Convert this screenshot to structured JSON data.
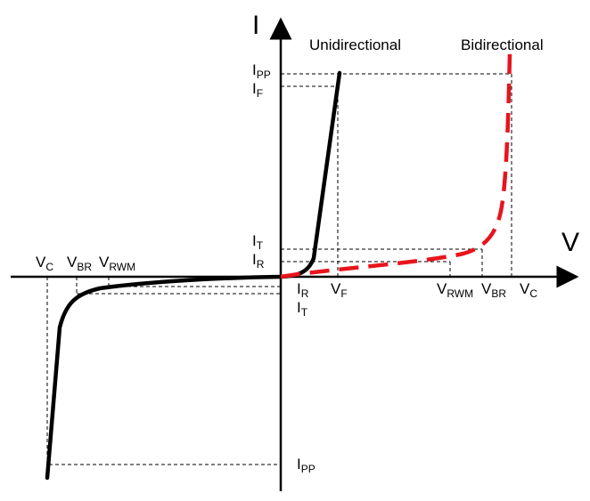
{
  "axes": {
    "y_axis_label": "I",
    "x_axis_label": "V"
  },
  "legend": {
    "unidirectional": "Unidirectional",
    "bidirectional": "Bidirectional"
  },
  "colors": {
    "unidirectional": "#000000",
    "bidirectional": "#e8141c",
    "axes": "#000000"
  },
  "current_labels": {
    "ipp_top": {
      "main": "I",
      "sub": "PP"
    },
    "if": {
      "main": "I",
      "sub": "F"
    },
    "it_top": {
      "main": "I",
      "sub": "T"
    },
    "ir_top": {
      "main": "I",
      "sub": "R"
    },
    "ir_bottom": {
      "main": "I",
      "sub": "R"
    },
    "it_bottom": {
      "main": "I",
      "sub": "T"
    },
    "ipp_bottom": {
      "main": "I",
      "sub": "PP"
    }
  },
  "voltage_labels": {
    "vc_left": {
      "main": "V",
      "sub": "C"
    },
    "vbr_left": {
      "main": "V",
      "sub": "BR"
    },
    "vrwm_left": {
      "main": "V",
      "sub": "RWM"
    },
    "vf": {
      "main": "V",
      "sub": "F"
    },
    "vrwm_right": {
      "main": "V",
      "sub": "RWM"
    },
    "vbr_right": {
      "main": "V",
      "sub": "BR"
    },
    "vc_right": {
      "main": "V",
      "sub": "C"
    }
  }
}
